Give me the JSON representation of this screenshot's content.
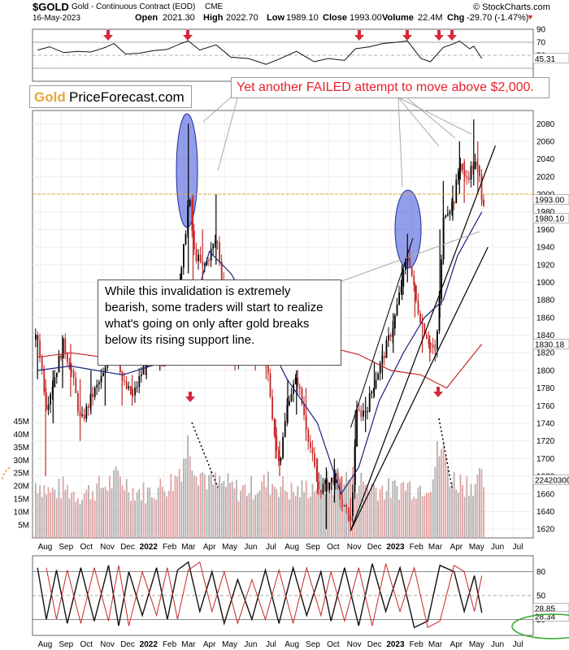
{
  "header": {
    "ticker": "$GOLD",
    "description": "Gold - Continuous Contract (EOD)",
    "exchange": "CME",
    "source": "© StockCharts.com",
    "date": "16-May-2023",
    "open_label": "Open",
    "open": "2021.30",
    "high_label": "High",
    "high": "2022.70",
    "low_label": "Low",
    "low": "1989.10",
    "close_label": "Close",
    "close": "1993.00",
    "volume_label": "Volume",
    "volume": "22.4M",
    "chg_label": "Chg",
    "chg": "-29.70 (-1.47%)"
  },
  "brand": {
    "gold": "Gold",
    "name": "PriceForecast.com"
  },
  "annotations": {
    "top": "Yet another FAILED attempt to move above $2,000.",
    "middle": "While this invalidation is extremely bearish, some traders will start to realize what's going on only after gold breaks below its rising support line."
  },
  "colors": {
    "up": "#000000",
    "down": "#c62828",
    "ma50": "#1a237e",
    "ma200": "#c62828",
    "reference": "#e8a63a",
    "annotation_red": "#e8202a",
    "highlight": "#3b4fd8",
    "volume_up": "#b0b0b0",
    "volume_down": "#e2a3a3",
    "indicator": "#111111",
    "ellipse": "#2eaa2e"
  },
  "chart_data": [
    {
      "type": "line",
      "name": "RSI panel",
      "x": [
        "2021-07-28",
        "2021-08-15",
        "2021-09-05",
        "2021-09-25",
        "2021-10-15",
        "2021-11-05",
        "2021-11-18",
        "2021-12-05",
        "2021-12-25",
        "2022-01-15",
        "2022-02-05",
        "2022-02-25",
        "2022-03-08",
        "2022-03-25",
        "2022-04-18",
        "2022-05-10",
        "2022-06-05",
        "2022-07-01",
        "2022-07-20",
        "2022-08-15",
        "2022-09-10",
        "2022-10-01",
        "2022-10-25",
        "2022-11-10",
        "2022-12-01",
        "2022-12-20",
        "2023-01-10",
        "2023-01-26",
        "2023-02-15",
        "2023-03-01",
        "2023-03-20",
        "2023-04-05",
        "2023-04-13",
        "2023-04-28",
        "2023-05-04",
        "2023-05-16"
      ],
      "values": [
        58,
        63,
        54,
        56,
        55,
        62,
        68,
        52,
        53,
        57,
        59,
        68,
        72,
        58,
        66,
        47,
        45,
        36,
        44,
        56,
        40,
        45,
        42,
        60,
        63,
        68,
        70,
        72,
        45,
        40,
        62,
        68,
        72,
        60,
        64,
        45
      ],
      "last_value": "45.31",
      "ylim": [
        10,
        90
      ],
      "ytick_labels": [
        "90",
        "70",
        "50"
      ]
    },
    {
      "type": "candlestick",
      "name": "Gold daily",
      "x": [
        "2021-07-28",
        "2021-08-09",
        "2021-08-20",
        "2021-09-03",
        "2021-09-15",
        "2021-09-29",
        "2021-10-15",
        "2021-11-05",
        "2021-11-16",
        "2021-11-30",
        "2021-12-15",
        "2022-01-05",
        "2022-01-25",
        "2022-02-10",
        "2022-02-24",
        "2022-03-08",
        "2022-03-15",
        "2022-03-29",
        "2022-04-18",
        "2022-05-02",
        "2022-05-16",
        "2022-06-01",
        "2022-06-15",
        "2022-07-01",
        "2022-07-15",
        "2022-07-21",
        "2022-08-02",
        "2022-08-15",
        "2022-08-29",
        "2022-09-15",
        "2022-09-28",
        "2022-10-10",
        "2022-10-21",
        "2022-11-03",
        "2022-11-10",
        "2022-11-25",
        "2022-12-08",
        "2022-12-20",
        "2023-01-05",
        "2023-01-18",
        "2023-01-26",
        "2023-02-06",
        "2023-02-17",
        "2023-02-28",
        "2023-03-08",
        "2023-03-15",
        "2023-03-20",
        "2023-04-03",
        "2023-04-13",
        "2023-04-20",
        "2023-05-04",
        "2023-05-10",
        "2023-05-16"
      ],
      "close": [
        1835,
        1760,
        1790,
        1830,
        1800,
        1740,
        1770,
        1800,
        1855,
        1785,
        1770,
        1815,
        1830,
        1850,
        1905,
        2000,
        1935,
        1915,
        1950,
        1870,
        1815,
        1855,
        1830,
        1808,
        1710,
        1700,
        1770,
        1790,
        1735,
        1665,
        1670,
        1680,
        1645,
        1630,
        1750,
        1755,
        1790,
        1815,
        1855,
        1905,
        1935,
        1880,
        1850,
        1830,
        1818,
        1905,
        1980,
        1990,
        2040,
        2015,
        2035,
        2025,
        1993
      ],
      "high": [
        1840,
        1790,
        1800,
        1840,
        1830,
        1790,
        1800,
        1810,
        1880,
        1800,
        1795,
        1830,
        1840,
        1865,
        1910,
        2080,
        2000,
        1960,
        2000,
        1900,
        1860,
        1870,
        1860,
        1830,
        1745,
        1720,
        1790,
        1800,
        1780,
        1700,
        1690,
        1700,
        1680,
        1655,
        1755,
        1770,
        1810,
        1830,
        1865,
        1920,
        1955,
        1900,
        1860,
        1840,
        1830,
        1960,
        2015,
        2010,
        2060,
        2040,
        2085,
        2060,
        2022.7
      ],
      "low": [
        1790,
        1680,
        1740,
        1780,
        1770,
        1720,
        1750,
        1760,
        1830,
        1760,
        1760,
        1790,
        1800,
        1820,
        1870,
        1910,
        1900,
        1895,
        1920,
        1840,
        1800,
        1820,
        1800,
        1790,
        1700,
        1680,
        1740,
        1750,
        1720,
        1660,
        1620,
        1650,
        1640,
        1618,
        1670,
        1730,
        1770,
        1790,
        1820,
        1880,
        1900,
        1860,
        1820,
        1810,
        1810,
        1860,
        1920,
        1970,
        2000,
        1990,
        2010,
        2000,
        1989.1
      ],
      "ylim": [
        1610,
        2095
      ],
      "ytick_labels": [
        "2080",
        "2060",
        "2040",
        "2020",
        "2000",
        "1980",
        "1960",
        "1940",
        "1920",
        "1900",
        "1880",
        "1860",
        "1840",
        "1820",
        "1800",
        "1780",
        "1760",
        "1740",
        "1720",
        "1700",
        "1680",
        "1660",
        "1640",
        "1620"
      ],
      "reference_level": 2000,
      "last_close_label": "1993.00",
      "ma50_label": "1980.10",
      "ma200_label": "1830.18",
      "ma50": {
        "x": [
          "2021-07-28",
          "2021-09-15",
          "2021-12-01",
          "2022-02-01",
          "2022-03-10",
          "2022-04-08",
          "2022-05-10",
          "2022-06-20",
          "2022-08-01",
          "2022-09-15",
          "2022-10-20",
          "2022-11-15",
          "2022-12-15",
          "2023-01-20",
          "2023-02-20",
          "2023-03-20",
          "2023-04-10",
          "2023-05-16"
        ],
        "values": [
          1800,
          1805,
          1795,
          1810,
          1855,
          1935,
          1910,
          1855,
          1790,
          1740,
          1660,
          1690,
          1765,
          1820,
          1860,
          1880,
          1930,
          1980
        ]
      },
      "ma200": {
        "x": [
          "2021-07-28",
          "2021-09-15",
          "2021-12-01",
          "2022-02-01",
          "2022-04-08",
          "2022-06-20",
          "2022-09-15",
          "2022-11-15",
          "2023-01-01",
          "2023-02-15",
          "2023-03-25",
          "2023-04-20",
          "2023-05-16"
        ],
        "values": [
          1815,
          1820,
          1812,
          1805,
          1835,
          1843,
          1830,
          1818,
          1800,
          1795,
          1780,
          1805,
          1830
        ]
      }
    },
    {
      "type": "bar",
      "name": "Volume",
      "x": [
        "2021-07-28",
        "2021-08-15",
        "2021-09-05",
        "2021-09-25",
        "2021-10-15",
        "2021-11-05",
        "2021-11-25",
        "2021-12-15",
        "2022-01-05",
        "2022-01-25",
        "2022-02-15",
        "2022-03-08",
        "2022-03-20",
        "2022-04-10",
        "2022-05-01",
        "2022-05-20",
        "2022-06-10",
        "2022-07-01",
        "2022-07-20",
        "2022-08-10",
        "2022-09-01",
        "2022-09-20",
        "2022-10-10",
        "2022-11-01",
        "2022-11-20",
        "2022-12-10",
        "2023-01-01",
        "2023-01-20",
        "2023-02-10",
        "2023-03-01",
        "2023-03-15",
        "2023-04-01",
        "2023-04-20",
        "2023-05-16"
      ],
      "values": [
        22,
        18,
        20,
        17,
        19,
        21,
        24,
        19,
        18,
        20,
        23,
        38,
        28,
        22,
        21,
        19,
        20,
        22,
        21,
        18,
        20,
        22,
        21,
        24,
        22,
        20,
        19,
        21,
        20,
        23,
        37,
        23,
        22,
        22.4
      ],
      "last_value_label": "22420300",
      "ylim": [
        0,
        47
      ],
      "ytick_labels": [
        "45M",
        "40M",
        "35M",
        "30M",
        "25M",
        "20M",
        "15M",
        "10M",
        "5M"
      ]
    },
    {
      "type": "line",
      "name": "Stochastic oscillator",
      "x": [
        "2021-07-28",
        "2021-08-10",
        "2021-08-25",
        "2021-09-10",
        "2021-09-30",
        "2021-10-20",
        "2021-11-10",
        "2021-11-25",
        "2021-12-10",
        "2021-12-30",
        "2022-01-20",
        "2022-02-05",
        "2022-02-20",
        "2022-03-08",
        "2022-03-25",
        "2022-04-12",
        "2022-04-30",
        "2022-05-20",
        "2022-06-10",
        "2022-06-30",
        "2022-07-20",
        "2022-08-10",
        "2022-08-30",
        "2022-09-20",
        "2022-10-05",
        "2022-10-25",
        "2022-11-15",
        "2022-12-05",
        "2022-12-25",
        "2023-01-15",
        "2023-02-05",
        "2023-02-25",
        "2023-03-15",
        "2023-04-05",
        "2023-04-20",
        "2023-05-05",
        "2023-05-16"
      ],
      "values": [
        85,
        20,
        82,
        15,
        85,
        18,
        88,
        12,
        80,
        25,
        85,
        20,
        82,
        92,
        30,
        80,
        15,
        70,
        20,
        82,
        15,
        85,
        25,
        80,
        18,
        85,
        12,
        90,
        30,
        85,
        10,
        18,
        88,
        80,
        30,
        75,
        28.34
      ],
      "signal_value_label": "28.85",
      "value_label": "28.34",
      "ylim": [
        0,
        100
      ],
      "ytick_labels": [
        "80",
        "50",
        "20"
      ]
    }
  ],
  "x_axis": {
    "labels": [
      "Aug",
      "Sep",
      "Oct",
      "Nov",
      "Dec",
      "2022",
      "Feb",
      "Mar",
      "Apr",
      "May",
      "Jun",
      "Jul",
      "Aug",
      "Sep",
      "Oct",
      "Nov",
      "Dec",
      "2023",
      "Feb",
      "Mar",
      "Apr",
      "May",
      "Jun",
      "Jul"
    ],
    "bold": [
      false,
      false,
      false,
      false,
      false,
      true,
      false,
      false,
      false,
      false,
      false,
      false,
      false,
      false,
      false,
      false,
      false,
      true,
      false,
      false,
      false,
      false,
      false,
      false
    ]
  }
}
